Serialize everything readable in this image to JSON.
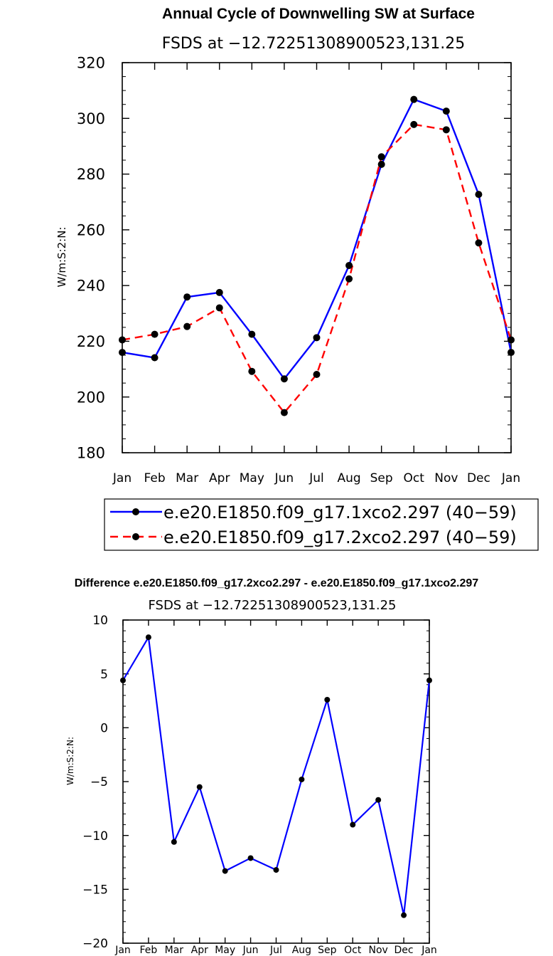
{
  "chart_data": [
    {
      "type": "line",
      "title": "Annual Cycle of Downwelling SW at Surface",
      "subtitle": "FSDS at −12.72251308900523,131.25",
      "ylabel": "W/m:S:2:N:",
      "categories": [
        "Jan",
        "Feb",
        "Mar",
        "Apr",
        "May",
        "Jun",
        "Jul",
        "Aug",
        "Sep",
        "Oct",
        "Nov",
        "Dec",
        "Jan"
      ],
      "ylim": [
        180,
        320
      ],
      "yticks": [
        "180",
        "200",
        "220",
        "240",
        "260",
        "280",
        "300",
        "320"
      ],
      "series": [
        {
          "name": "e.e20.E1850.f09_g17.1xco2.297 (40−59)",
          "color": "#0000ff",
          "dash": "solid",
          "values": [
            216.0,
            214.1,
            235.9,
            237.5,
            222.5,
            206.5,
            221.3,
            247.2,
            283.5,
            306.8,
            302.6,
            272.7,
            216.0
          ]
        },
        {
          "name": "e.e20.E1850.f09_g17.2xco2.297 (40−59)",
          "color": "#ff0000",
          "dash": "dashed",
          "values": [
            220.5,
            222.5,
            225.3,
            232.0,
            209.2,
            194.4,
            208.1,
            242.4,
            286.2,
            297.8,
            295.9,
            255.3,
            220.5
          ]
        }
      ]
    },
    {
      "type": "line",
      "title": "Difference e.e20.E1850.f09_g17.2xco2.297 - e.e20.E1850.f09_g17.1xco2.297",
      "subtitle": "FSDS at −12.72251308900523,131.25",
      "ylabel": "W/m:S:2:N:",
      "categories": [
        "Jan",
        "Feb",
        "Mar",
        "Apr",
        "May",
        "Jun",
        "Jul",
        "Aug",
        "Sep",
        "Oct",
        "Nov",
        "Dec",
        "Jan"
      ],
      "ylim": [
        -20,
        10
      ],
      "yticks": [
        "−20",
        "−15",
        "−10",
        "−5",
        "0",
        "5",
        "10"
      ],
      "series": [
        {
          "color": "#0000ff",
          "dash": "solid",
          "values": [
            4.4,
            8.4,
            -10.6,
            -5.5,
            -13.3,
            -12.1,
            -13.2,
            -4.8,
            2.6,
            -9.0,
            -6.7,
            -17.4,
            4.4
          ]
        }
      ]
    }
  ]
}
